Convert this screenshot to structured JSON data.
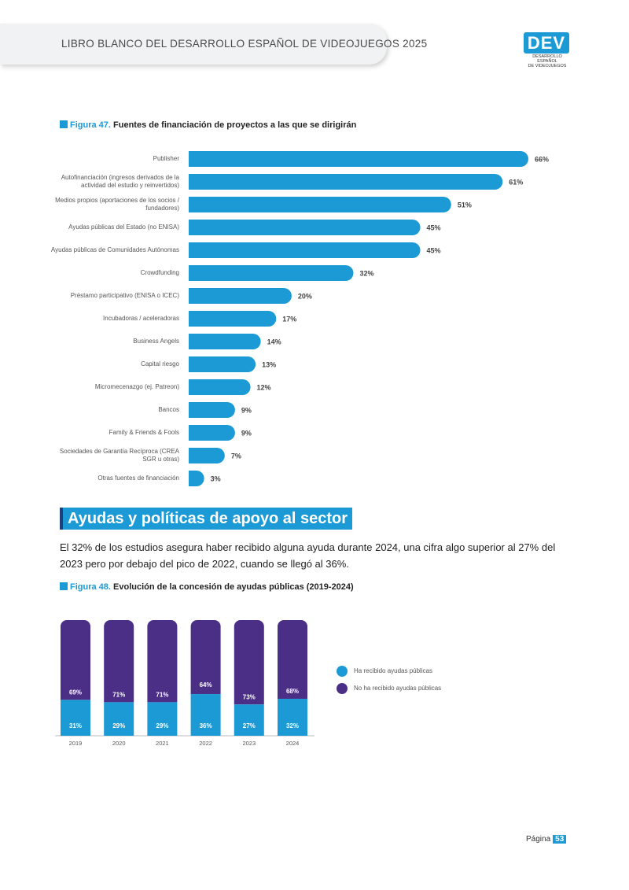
{
  "header": {
    "title": "LIBRO BLANCO DEL DESARROLLO ESPAÑOL DE VIDEOJUEGOS 2025"
  },
  "logo": {
    "mark": "DEV",
    "line1": "DESARROLLO ESPAÑOL",
    "line2": "DE VIDEOJUEGOS"
  },
  "figure47": {
    "number": "Figura 47.",
    "title": "Fuentes de financiación de proyectos a las que se dirigirán"
  },
  "chart_data": [
    {
      "type": "bar",
      "orientation": "horizontal",
      "categories": [
        "Publisher",
        "Autofinanciación (ingresos derivados de la actividad del estudio y reinvertidos)",
        "Medios propios (aportaciones de los socios / fundadores)",
        "Ayudas públicas del Estado (no ENISA)",
        "Ayudas públicas de Comunidades Autónomas",
        "Crowdfunding",
        "Préstamo participativo (ENISA o ICEC)",
        "Incubadoras / aceleradoras",
        "Business Angels",
        "Capital riesgo",
        "Micromecenazgo (ej. Patreon)",
        "Bancos",
        "Family & Friends & Fools",
        "Sociedades de Garantía Recíproca (CREA SGR u otras)",
        "Otras fuentes de financiación"
      ],
      "values": [
        66,
        61,
        51,
        45,
        45,
        32,
        20,
        17,
        14,
        13,
        12,
        9,
        9,
        7,
        3
      ],
      "value_labels": [
        "66%",
        "61%",
        "51%",
        "45%",
        "45%",
        "32%",
        "20%",
        "17%",
        "14%",
        "13%",
        "12%",
        "9%",
        "9%",
        "7%",
        "3%"
      ],
      "color": "#1c9ad6",
      "xlim": [
        0,
        66
      ]
    },
    {
      "type": "bar",
      "stacked": true,
      "categories": [
        "2019",
        "2020",
        "2021",
        "2022",
        "2023",
        "2024"
      ],
      "series": [
        {
          "name": "Ha recibido ayudas públicas",
          "values": [
            31,
            29,
            29,
            36,
            27,
            32
          ],
          "labels": [
            "31%",
            "29%",
            "29%",
            "36%",
            "27%",
            "32%"
          ],
          "color": "#1c9ad6"
        },
        {
          "name": "No ha recibido ayudas públicas",
          "values": [
            69,
            71,
            71,
            64,
            73,
            68
          ],
          "labels": [
            "69%",
            "71%",
            "71%",
            "64%",
            "73%",
            "68%"
          ],
          "color": "#4b2f87"
        }
      ],
      "ylim": [
        0,
        100
      ],
      "legend": "right"
    }
  ],
  "section": {
    "heading": "Ayudas y políticas de apoyo al sector"
  },
  "body": {
    "text": "El 32% de los estudios asegura haber recibido alguna ayuda durante 2024, una cifra algo superior al 27% del 2023 pero por debajo del pico de 2022, cuando se llegó al 36%."
  },
  "figure48": {
    "number": "Figura 48.",
    "title": "Evolución de la concesión de ayudas públicas (2019-2024)"
  },
  "legend": {
    "received": "Ha recibido ayudas públicas",
    "not_received": "No ha recibido ayudas públicas"
  },
  "footer": {
    "label": "Página",
    "page": "53"
  }
}
